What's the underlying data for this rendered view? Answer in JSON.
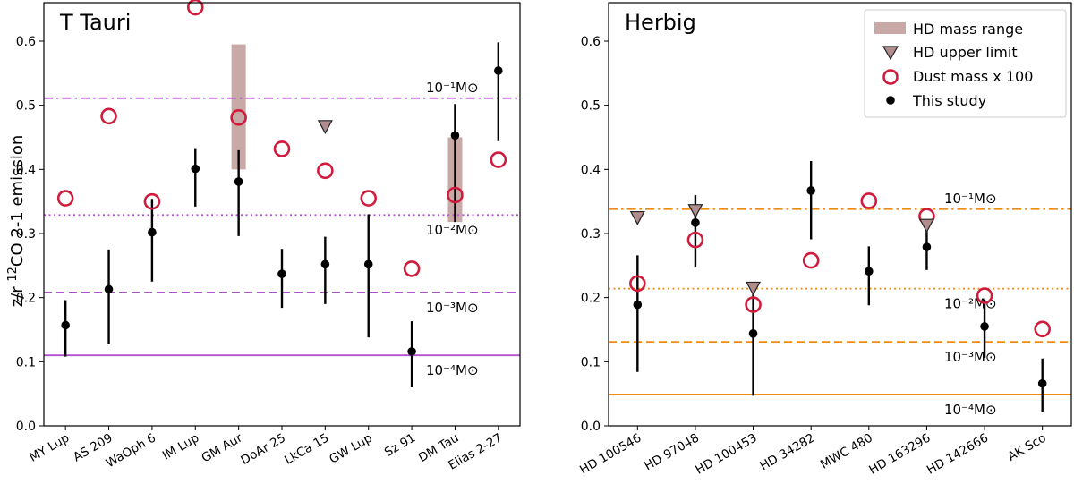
{
  "ylabel_prefix": "z/r ",
  "ylabel_sup": "12",
  "ylabel_suffix": "CO 2-1 emission",
  "legend": {
    "hd_range": "HD mass range",
    "hd_upper": "HD upper limit",
    "dust": "Dust mass x 100",
    "study": "This study"
  },
  "colors": {
    "hd_range": "#c9a9a6",
    "hd_upper": "#b08c8c",
    "dust": "#d01c3c",
    "study": "#000000",
    "ttauri_lines": "#b44fd6",
    "herbig_lines": "#f08a10"
  },
  "chart_data": [
    {
      "type": "scatter",
      "title": "T Tauri",
      "ylim": [
        0.0,
        0.66
      ],
      "yticks": [
        0.0,
        0.1,
        0.2,
        0.3,
        0.4,
        0.5,
        0.6
      ],
      "categories": [
        "MY Lup",
        "AS 209",
        "WaOph 6",
        "IM Lup",
        "GM Aur",
        "DoAr 25",
        "LkCa 15",
        "GW Lup",
        "Sz 91",
        "DM Tau",
        "Elias 2-27"
      ],
      "this_study": [
        {
          "i": 0,
          "y": 0.157,
          "lo": 0.108,
          "hi": 0.196
        },
        {
          "i": 1,
          "y": 0.213,
          "lo": 0.127,
          "hi": 0.275
        },
        {
          "i": 2,
          "y": 0.302,
          "lo": 0.225,
          "hi": 0.354
        },
        {
          "i": 3,
          "y": 0.401,
          "lo": 0.342,
          "hi": 0.433
        },
        {
          "i": 4,
          "y": 0.381,
          "lo": 0.296,
          "hi": 0.43
        },
        {
          "i": 5,
          "y": 0.237,
          "lo": 0.184,
          "hi": 0.276
        },
        {
          "i": 6,
          "y": 0.252,
          "lo": 0.19,
          "hi": 0.295
        },
        {
          "i": 7,
          "y": 0.252,
          "lo": 0.138,
          "hi": 0.33
        },
        {
          "i": 8,
          "y": 0.116,
          "lo": 0.06,
          "hi": 0.163
        },
        {
          "i": 9,
          "y": 0.453,
          "lo": 0.318,
          "hi": 0.502
        },
        {
          "i": 10,
          "y": 0.554,
          "lo": 0.444,
          "hi": 0.598
        }
      ],
      "dust": [
        {
          "i": 0,
          "y": 0.355
        },
        {
          "i": 1,
          "y": 0.483
        },
        {
          "i": 2,
          "y": 0.35
        },
        {
          "i": 3,
          "y": 0.653
        },
        {
          "i": 4,
          "y": 0.481
        },
        {
          "i": 5,
          "y": 0.432
        },
        {
          "i": 6,
          "y": 0.398
        },
        {
          "i": 7,
          "y": 0.355
        },
        {
          "i": 8,
          "y": 0.245
        },
        {
          "i": 9,
          "y": 0.36
        },
        {
          "i": 10,
          "y": 0.415
        }
      ],
      "hd_range": [
        {
          "i": 4,
          "lo": 0.4,
          "hi": 0.595
        },
        {
          "i": 9,
          "lo": 0.318,
          "hi": 0.45
        }
      ],
      "hd_upper": [
        {
          "i": 6,
          "y": 0.467
        }
      ],
      "mass_lines": [
        {
          "y": 0.511,
          "style": "dashdot",
          "label": "10⁻¹M⊙"
        },
        {
          "y": 0.329,
          "style": "dotted",
          "label": "10⁻²M⊙"
        },
        {
          "y": 0.208,
          "style": "dashed",
          "label": "10⁻³M⊙"
        },
        {
          "y": 0.11,
          "style": "solid",
          "label": "10⁻⁴M⊙"
        }
      ]
    },
    {
      "type": "scatter",
      "title": "Herbig",
      "ylim": [
        0.0,
        0.66
      ],
      "yticks": [
        0.0,
        0.1,
        0.2,
        0.3,
        0.4,
        0.5,
        0.6
      ],
      "categories": [
        "HD 100546",
        "HD 97048",
        "HD 100453",
        "HD 34282",
        "MWC 480",
        "HD 163296",
        "HD 142666",
        "AK Sco"
      ],
      "this_study": [
        {
          "i": 0,
          "y": 0.189,
          "lo": 0.084,
          "hi": 0.266
        },
        {
          "i": 1,
          "y": 0.317,
          "lo": 0.247,
          "hi": 0.36
        },
        {
          "i": 2,
          "y": 0.144,
          "lo": 0.047,
          "hi": 0.21
        },
        {
          "i": 3,
          "y": 0.367,
          "lo": 0.291,
          "hi": 0.413
        },
        {
          "i": 4,
          "y": 0.241,
          "lo": 0.188,
          "hi": 0.28
        },
        {
          "i": 5,
          "y": 0.279,
          "lo": 0.243,
          "hi": 0.313
        },
        {
          "i": 6,
          "y": 0.155,
          "lo": 0.106,
          "hi": 0.197
        },
        {
          "i": 7,
          "y": 0.066,
          "lo": 0.021,
          "hi": 0.105
        }
      ],
      "dust": [
        {
          "i": 0,
          "y": 0.222
        },
        {
          "i": 1,
          "y": 0.29
        },
        {
          "i": 2,
          "y": 0.189
        },
        {
          "i": 3,
          "y": 0.258
        },
        {
          "i": 4,
          "y": 0.351
        },
        {
          "i": 5,
          "y": 0.327
        },
        {
          "i": 6,
          "y": 0.203
        },
        {
          "i": 7,
          "y": 0.151
        }
      ],
      "hd_range": [],
      "hd_upper": [
        {
          "i": 0,
          "y": 0.325
        },
        {
          "i": 1,
          "y": 0.336
        },
        {
          "i": 2,
          "y": 0.215
        },
        {
          "i": 5,
          "y": 0.313
        }
      ],
      "mass_lines": [
        {
          "y": 0.338,
          "style": "dashdot",
          "label": "10⁻¹M⊙"
        },
        {
          "y": 0.214,
          "style": "dotted",
          "label": "10⁻²M⊙"
        },
        {
          "y": 0.131,
          "style": "dashed",
          "label": "10⁻³M⊙"
        },
        {
          "y": 0.049,
          "style": "solid",
          "label": "10⁻⁴M⊙"
        }
      ]
    }
  ]
}
